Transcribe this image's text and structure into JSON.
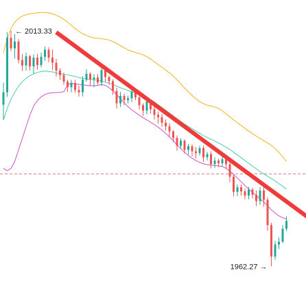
{
  "chart_data": {
    "type": "candlestick",
    "title": "",
    "xlabel": "",
    "ylabel": "",
    "ylim": [
      1958,
      2020
    ],
    "grid": false,
    "legend": "none",
    "annotations": {
      "high_label": "← 2013.33",
      "high_value": 2013.33,
      "low_label": "1962.27 →",
      "low_value": 1962.27
    },
    "reference_line": {
      "value": 1982.3,
      "style": "dashed"
    },
    "trend_arrow": {
      "from": [
        14,
        2013.0
      ],
      "to": [
        95,
        1964.2
      ]
    },
    "colors": {
      "up": "#26a69a",
      "down": "#ef5350",
      "upper_band": "#f5b731",
      "middle_band": "#5ccfae",
      "lower_band": "#d15fcf",
      "reference_line": "#e07a84",
      "arrow": "#ef3b3b"
    },
    "candles": [
      {
        "o": 1997.3,
        "h": 2002.1,
        "l": 1994.1,
        "c": 2000.0
      },
      {
        "o": 2000.0,
        "h": 2013.0,
        "l": 1999.0,
        "c": 2011.8
      },
      {
        "o": 2011.8,
        "h": 2013.33,
        "l": 2008.9,
        "c": 2009.5
      },
      {
        "o": 2009.5,
        "h": 2012.6,
        "l": 2007.3,
        "c": 2011.0
      },
      {
        "o": 2011.0,
        "h": 2011.5,
        "l": 2006.3,
        "c": 2007.0
      },
      {
        "o": 2007.0,
        "h": 2008.3,
        "l": 2004.6,
        "c": 2005.8
      },
      {
        "o": 2005.8,
        "h": 2008.6,
        "l": 2004.7,
        "c": 2007.8
      },
      {
        "o": 2007.8,
        "h": 2008.1,
        "l": 2004.7,
        "c": 2005.6
      },
      {
        "o": 2005.6,
        "h": 2008.2,
        "l": 2004.0,
        "c": 2007.5
      },
      {
        "o": 2007.5,
        "h": 2008.3,
        "l": 2004.9,
        "c": 2005.9
      },
      {
        "o": 2005.9,
        "h": 2008.6,
        "l": 2005.4,
        "c": 2007.7
      },
      {
        "o": 2007.7,
        "h": 2009.9,
        "l": 2006.8,
        "c": 2009.2
      },
      {
        "o": 2009.2,
        "h": 2009.8,
        "l": 2006.5,
        "c": 2007.5
      },
      {
        "o": 2007.5,
        "h": 2009.3,
        "l": 2004.8,
        "c": 2006.4
      },
      {
        "o": 2006.4,
        "h": 2007.2,
        "l": 2003.4,
        "c": 2004.7
      },
      {
        "o": 2004.7,
        "h": 2005.2,
        "l": 2002.7,
        "c": 2003.7
      },
      {
        "o": 2003.7,
        "h": 2004.3,
        "l": 2001.6,
        "c": 2002.3
      },
      {
        "o": 2002.3,
        "h": 2002.7,
        "l": 2000.1,
        "c": 2001.1
      },
      {
        "o": 2001.1,
        "h": 2002.7,
        "l": 2000.0,
        "c": 2002.0
      },
      {
        "o": 2002.0,
        "h": 2002.7,
        "l": 1999.9,
        "c": 2000.5
      },
      {
        "o": 2000.5,
        "h": 2001.4,
        "l": 1999.1,
        "c": 2000.0
      },
      {
        "o": 2000.0,
        "h": 2003.5,
        "l": 1999.1,
        "c": 2002.7
      },
      {
        "o": 2002.7,
        "h": 2005.0,
        "l": 2002.3,
        "c": 2004.0
      },
      {
        "o": 2004.0,
        "h": 2004.3,
        "l": 2001.4,
        "c": 2002.8
      },
      {
        "o": 2002.8,
        "h": 2003.9,
        "l": 2001.1,
        "c": 2003.2
      },
      {
        "o": 2003.2,
        "h": 2004.0,
        "l": 2001.6,
        "c": 2002.1
      },
      {
        "o": 2002.1,
        "h": 2005.4,
        "l": 2001.3,
        "c": 2004.8
      },
      {
        "o": 2004.8,
        "h": 2005.7,
        "l": 2002.3,
        "c": 2003.3
      },
      {
        "o": 2003.3,
        "h": 2003.6,
        "l": 2001.6,
        "c": 2002.4
      },
      {
        "o": 2002.4,
        "h": 2002.8,
        "l": 1999.4,
        "c": 2000.3
      },
      {
        "o": 2000.3,
        "h": 2001.0,
        "l": 1996.5,
        "c": 1997.6
      },
      {
        "o": 1997.6,
        "h": 2000.1,
        "l": 1996.8,
        "c": 1999.2
      },
      {
        "o": 1999.2,
        "h": 1999.7,
        "l": 1997.2,
        "c": 1998.3
      },
      {
        "o": 1998.3,
        "h": 1999.3,
        "l": 1997.6,
        "c": 1998.7
      },
      {
        "o": 1998.7,
        "h": 2000.6,
        "l": 1997.9,
        "c": 2000.1
      },
      {
        "o": 2000.1,
        "h": 2000.6,
        "l": 1998.3,
        "c": 1998.9
      },
      {
        "o": 1998.9,
        "h": 1999.2,
        "l": 1996.3,
        "c": 1997.2
      },
      {
        "o": 1997.2,
        "h": 1997.6,
        "l": 1994.9,
        "c": 1996.0
      },
      {
        "o": 1996.0,
        "h": 1998.6,
        "l": 1995.2,
        "c": 1998.0
      },
      {
        "o": 1998.0,
        "h": 1998.4,
        "l": 1995.4,
        "c": 1996.3
      },
      {
        "o": 1996.3,
        "h": 1996.8,
        "l": 1994.1,
        "c": 1995.1
      },
      {
        "o": 1995.1,
        "h": 1995.8,
        "l": 1993.2,
        "c": 1994.6
      },
      {
        "o": 1994.6,
        "h": 1995.4,
        "l": 1992.5,
        "c": 1993.4
      },
      {
        "o": 1993.4,
        "h": 1994.1,
        "l": 1991.7,
        "c": 1992.6
      },
      {
        "o": 1992.6,
        "h": 1993.3,
        "l": 1990.4,
        "c": 1991.5
      },
      {
        "o": 1991.5,
        "h": 1991.8,
        "l": 1989.2,
        "c": 1990.1
      },
      {
        "o": 1990.1,
        "h": 1990.6,
        "l": 1987.3,
        "c": 1988.4
      },
      {
        "o": 1988.4,
        "h": 1990.0,
        "l": 1987.7,
        "c": 1989.5
      },
      {
        "o": 1989.5,
        "h": 1989.8,
        "l": 1986.7,
        "c": 1987.5
      },
      {
        "o": 1987.5,
        "h": 1988.8,
        "l": 1986.5,
        "c": 1988.3
      },
      {
        "o": 1988.3,
        "h": 1988.7,
        "l": 1986.1,
        "c": 1987.2
      },
      {
        "o": 1987.2,
        "h": 1988.1,
        "l": 1985.7,
        "c": 1986.8
      },
      {
        "o": 1986.8,
        "h": 1988.4,
        "l": 1986.3,
        "c": 1987.9
      },
      {
        "o": 1987.9,
        "h": 1988.4,
        "l": 1984.9,
        "c": 1985.9
      },
      {
        "o": 1985.9,
        "h": 1987.1,
        "l": 1985.2,
        "c": 1986.6
      },
      {
        "o": 1986.6,
        "h": 1987.2,
        "l": 1983.5,
        "c": 1984.4
      },
      {
        "o": 1984.4,
        "h": 1985.9,
        "l": 1983.6,
        "c": 1985.2
      },
      {
        "o": 1985.2,
        "h": 1985.6,
        "l": 1983.8,
        "c": 1984.6
      },
      {
        "o": 1984.6,
        "h": 1986.3,
        "l": 1983.9,
        "c": 1985.5
      },
      {
        "o": 1985.5,
        "h": 1985.9,
        "l": 1983.4,
        "c": 1984.4
      },
      {
        "o": 1984.4,
        "h": 1984.8,
        "l": 1980.5,
        "c": 1981.7
      },
      {
        "o": 1981.7,
        "h": 1982.3,
        "l": 1977.4,
        "c": 1978.4
      },
      {
        "o": 1978.4,
        "h": 1980.0,
        "l": 1977.5,
        "c": 1979.4
      },
      {
        "o": 1979.4,
        "h": 1980.0,
        "l": 1977.6,
        "c": 1978.5
      },
      {
        "o": 1978.5,
        "h": 1979.1,
        "l": 1976.8,
        "c": 1977.6
      },
      {
        "o": 1977.6,
        "h": 1979.5,
        "l": 1976.8,
        "c": 1978.9
      },
      {
        "o": 1978.9,
        "h": 1979.3,
        "l": 1977.0,
        "c": 1977.8
      },
      {
        "o": 1977.8,
        "h": 1978.7,
        "l": 1975.3,
        "c": 1976.4
      },
      {
        "o": 1976.4,
        "h": 1979.5,
        "l": 1975.6,
        "c": 1978.7
      },
      {
        "o": 1978.7,
        "h": 1979.5,
        "l": 1975.2,
        "c": 1976.7
      },
      {
        "o": 1976.7,
        "h": 1977.2,
        "l": 1970.0,
        "c": 1971.2
      },
      {
        "o": 1971.2,
        "h": 1971.7,
        "l": 1962.27,
        "c": 1964.4
      },
      {
        "o": 1964.4,
        "h": 1967.8,
        "l": 1963.7,
        "c": 1967.0
      },
      {
        "o": 1967.0,
        "h": 1968.5,
        "l": 1966.0,
        "c": 1967.6
      },
      {
        "o": 1967.6,
        "h": 1971.2,
        "l": 1967.3,
        "c": 1970.4
      },
      {
        "o": 1970.4,
        "h": 1973.1,
        "l": 1969.9,
        "c": 1972.1
      }
    ],
    "bands": {
      "upper": [
        2008.5,
        2011.5,
        2013.8,
        2015.2,
        2016.0,
        2016.5,
        2016.8,
        2017.0,
        2017.1,
        2017.2,
        2017.3,
        2017.3,
        2017.2,
        2017.0,
        2016.7,
        2016.3,
        2015.8,
        2015.2,
        2014.5,
        2013.8,
        2013.2,
        2012.7,
        2012.3,
        2012.0,
        2011.8,
        2011.7,
        2011.6,
        2011.5,
        2011.3,
        2011.0,
        2010.6,
        2010.1,
        2009.6,
        2009.2,
        2008.9,
        2008.6,
        2008.4,
        2008.1,
        2007.7,
        2007.2,
        2006.6,
        2006.0,
        2005.4,
        2004.8,
        2004.2,
        2003.5,
        2002.7,
        2001.8,
        2000.9,
        2000.1,
        1999.3,
        1998.6,
        1998.0,
        1997.5,
        1997.2,
        1997.0,
        1996.8,
        1996.5,
        1996.0,
        1995.3,
        1994.7,
        1994.0,
        1993.4,
        1992.8,
        1992.2,
        1991.6,
        1991.0,
        1990.5,
        1990.0,
        1989.5,
        1989.0,
        1988.5,
        1987.8,
        1987.0,
        1986.0,
        1985.0
      ],
      "middle": [
        1994.0,
        1996.5,
        1998.5,
        2000.0,
        2001.3,
        2002.3,
        2003.0,
        2003.6,
        2004.0,
        2004.3,
        2004.5,
        2004.6,
        2004.5,
        2004.4,
        2004.2,
        2004.0,
        2003.9,
        2003.8,
        2003.6,
        2003.4,
        2003.2,
        2003.0,
        2002.9,
        2002.8,
        2002.7,
        2002.6,
        2002.4,
        2002.2,
        2002.0,
        2001.7,
        2001.3,
        2001.0,
        2000.7,
        2000.4,
        2000.1,
        1999.8,
        1999.5,
        1999.2,
        1998.8,
        1998.4,
        1997.9,
        1997.3,
        1996.7,
        1996.1,
        1995.5,
        1994.9,
        1994.3,
        1993.7,
        1993.1,
        1992.6,
        1992.1,
        1991.6,
        1991.1,
        1990.6,
        1990.2,
        1989.8,
        1989.4,
        1989.0,
        1988.6,
        1988.1,
        1987.6,
        1987.0,
        1986.4,
        1985.8,
        1985.2,
        1984.6,
        1984.0,
        1983.4,
        1982.8,
        1982.3,
        1981.8,
        1981.3,
        1980.8,
        1980.2,
        1979.6,
        1979.0
      ],
      "lower": [
        1983.5,
        1983.0,
        1983.5,
        1985.0,
        1987.5,
        1990.0,
        1992.5,
        1995.0,
        1997.0,
        1998.2,
        1999.0,
        1999.5,
        1999.8,
        1999.9,
        1999.9,
        2000.0,
        2000.1,
        2001.6,
        2002.0,
        2001.8,
        2001.7,
        2001.6,
        2001.5,
        2001.4,
        2001.4,
        2001.5,
        2001.7,
        2001.5,
        2001.0,
        2000.3,
        1999.5,
        1998.6,
        1997.7,
        1996.9,
        1996.2,
        1995.6,
        1995.0,
        1994.5,
        1994.0,
        1993.5,
        1993.0,
        1992.4,
        1991.8,
        1991.1,
        1990.3,
        1989.5,
        1988.6,
        1987.8,
        1987.0,
        1986.3,
        1985.7,
        1985.2,
        1984.8,
        1984.5,
        1984.3,
        1984.2,
        1984.1,
        1984.0,
        1983.9,
        1983.5,
        1982.9,
        1982.2,
        1981.4,
        1980.6,
        1979.8,
        1979.0,
        1978.3,
        1977.6,
        1976.9,
        1976.2,
        1975.4,
        1974.5,
        1973.8,
        1973.2,
        1972.8,
        1972.5
      ]
    }
  }
}
